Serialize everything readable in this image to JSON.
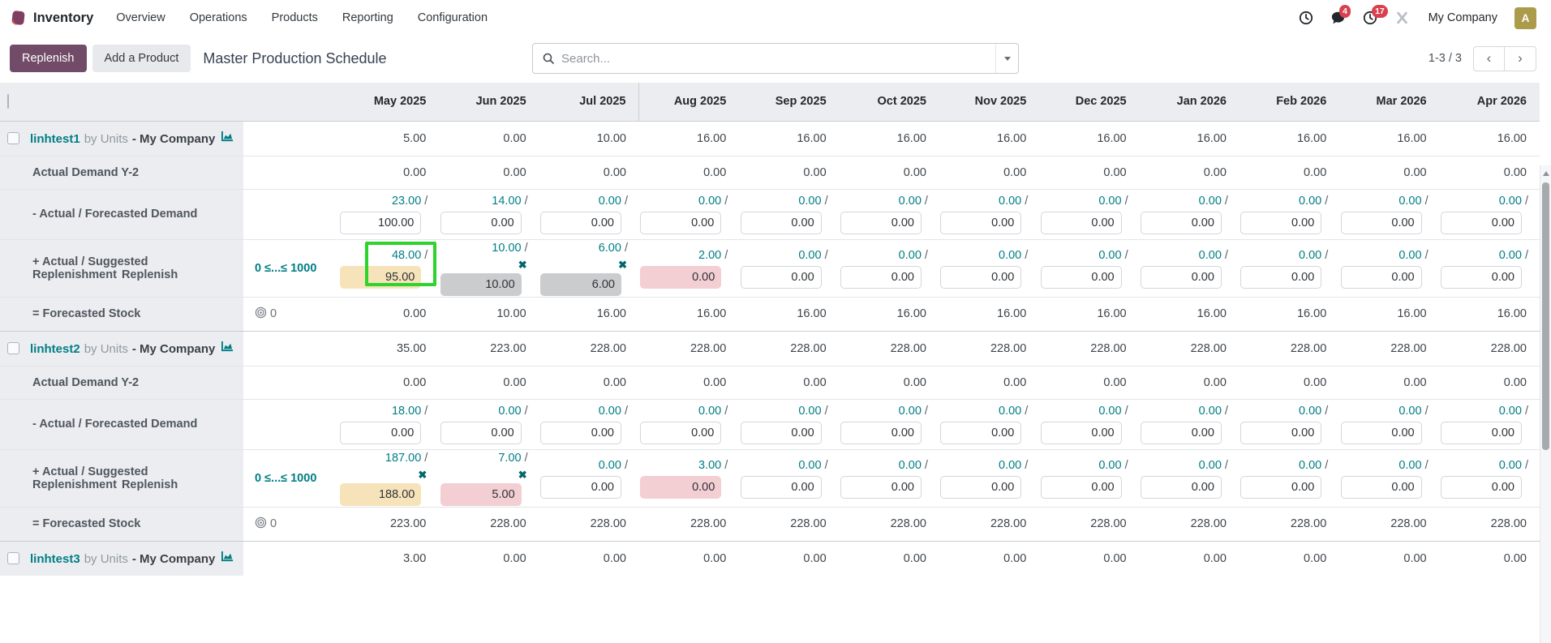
{
  "navbar": {
    "app_name": "Inventory",
    "menus": [
      "Overview",
      "Operations",
      "Products",
      "Reporting",
      "Configuration"
    ],
    "messages_badge": "4",
    "activities_badge": "17",
    "company": "My Company",
    "avatar_initial": "A"
  },
  "control_panel": {
    "replenish_label": "Replenish",
    "add_product_label": "Add a Product",
    "title": "Master Production Schedule",
    "search_placeholder": "Search...",
    "pager": "1-3 / 3",
    "prev_label": "‹",
    "next_label": "›"
  },
  "colors": {
    "accent_purple": "#714B67",
    "link_teal": "#017e84",
    "badge_red": "#d9414f",
    "input_warning": "#f6e3b9",
    "input_muted": "#cbcccd",
    "input_danger": "#f3ced3",
    "annotation_green": "#2ed32e"
  },
  "table": {
    "months": [
      "May 2025",
      "Jun 2025",
      "Jul 2025",
      "Aug 2025",
      "Sep 2025",
      "Oct 2025",
      "Nov 2025",
      "Dec 2025",
      "Jan 2026",
      "Feb 2026",
      "Mar 2026",
      "Apr 2026"
    ],
    "divider_after_month_index": 2,
    "row_labels": {
      "demand_y2": "Actual Demand Y-2",
      "forecasted_demand": "- Actual / Forecasted Demand",
      "replenishment": "+ Actual / Suggested Replenishment",
      "replenish_button": "Replenish",
      "forecasted_stock": "= Forecasted Stock",
      "range": "0 ≤...≤ 1000",
      "target": "0"
    },
    "sections": [
      {
        "product": "linhtest1",
        "by": "by Units",
        "company": "- My Company",
        "starting_inventory": [
          "5.00",
          "0.00",
          "10.00",
          "16.00",
          "16.00",
          "16.00",
          "16.00",
          "16.00",
          "16.00",
          "16.00",
          "16.00",
          "16.00"
        ],
        "demand_y2": [
          "0.00",
          "0.00",
          "0.00",
          "0.00",
          "0.00",
          "0.00",
          "0.00",
          "0.00",
          "0.00",
          "0.00",
          "0.00",
          "0.00"
        ],
        "forecasted_demand": [
          {
            "actual": "23.00",
            "value": "100.00"
          },
          {
            "actual": "14.00",
            "value": "0.00"
          },
          {
            "actual": "0.00",
            "value": "0.00"
          },
          {
            "actual": "0.00",
            "value": "0.00"
          },
          {
            "actual": "0.00",
            "value": "0.00"
          },
          {
            "actual": "0.00",
            "value": "0.00"
          },
          {
            "actual": "0.00",
            "value": "0.00"
          },
          {
            "actual": "0.00",
            "value": "0.00"
          },
          {
            "actual": "0.00",
            "value": "0.00"
          },
          {
            "actual": "0.00",
            "value": "0.00"
          },
          {
            "actual": "0.00",
            "value": "0.00"
          },
          {
            "actual": "0.00",
            "value": "0.00"
          }
        ],
        "replenishment": [
          {
            "actual": "48.00",
            "value": "95.00",
            "style": "warning",
            "highlight": true
          },
          {
            "actual": "10.00",
            "value": "10.00",
            "style": "muted",
            "x": true
          },
          {
            "actual": "6.00",
            "value": "6.00",
            "style": "muted",
            "x": true
          },
          {
            "actual": "2.00",
            "value": "0.00",
            "style": "danger"
          },
          {
            "actual": "0.00",
            "value": "0.00"
          },
          {
            "actual": "0.00",
            "value": "0.00"
          },
          {
            "actual": "0.00",
            "value": "0.00"
          },
          {
            "actual": "0.00",
            "value": "0.00"
          },
          {
            "actual": "0.00",
            "value": "0.00"
          },
          {
            "actual": "0.00",
            "value": "0.00"
          },
          {
            "actual": "0.00",
            "value": "0.00"
          },
          {
            "actual": "0.00",
            "value": "0.00"
          }
        ],
        "forecasted_stock": [
          "0.00",
          "10.00",
          "16.00",
          "16.00",
          "16.00",
          "16.00",
          "16.00",
          "16.00",
          "16.00",
          "16.00",
          "16.00",
          "16.00"
        ]
      },
      {
        "product": "linhtest2",
        "by": "by Units",
        "company": "- My Company",
        "starting_inventory": [
          "35.00",
          "223.00",
          "228.00",
          "228.00",
          "228.00",
          "228.00",
          "228.00",
          "228.00",
          "228.00",
          "228.00",
          "228.00",
          "228.00"
        ],
        "demand_y2": [
          "0.00",
          "0.00",
          "0.00",
          "0.00",
          "0.00",
          "0.00",
          "0.00",
          "0.00",
          "0.00",
          "0.00",
          "0.00",
          "0.00"
        ],
        "forecasted_demand": [
          {
            "actual": "18.00",
            "value": "0.00"
          },
          {
            "actual": "0.00",
            "value": "0.00"
          },
          {
            "actual": "0.00",
            "value": "0.00"
          },
          {
            "actual": "0.00",
            "value": "0.00"
          },
          {
            "actual": "0.00",
            "value": "0.00"
          },
          {
            "actual": "0.00",
            "value": "0.00"
          },
          {
            "actual": "0.00",
            "value": "0.00"
          },
          {
            "actual": "0.00",
            "value": "0.00"
          },
          {
            "actual": "0.00",
            "value": "0.00"
          },
          {
            "actual": "0.00",
            "value": "0.00"
          },
          {
            "actual": "0.00",
            "value": "0.00"
          },
          {
            "actual": "0.00",
            "value": "0.00"
          }
        ],
        "replenishment": [
          {
            "actual": "187.00",
            "value": "188.00",
            "style": "warning",
            "x": true
          },
          {
            "actual": "7.00",
            "value": "5.00",
            "style": "danger",
            "x": true
          },
          {
            "actual": "0.00",
            "value": "0.00"
          },
          {
            "actual": "3.00",
            "value": "0.00",
            "style": "danger"
          },
          {
            "actual": "0.00",
            "value": "0.00"
          },
          {
            "actual": "0.00",
            "value": "0.00"
          },
          {
            "actual": "0.00",
            "value": "0.00"
          },
          {
            "actual": "0.00",
            "value": "0.00"
          },
          {
            "actual": "0.00",
            "value": "0.00"
          },
          {
            "actual": "0.00",
            "value": "0.00"
          },
          {
            "actual": "0.00",
            "value": "0.00"
          },
          {
            "actual": "0.00",
            "value": "0.00"
          }
        ],
        "forecasted_stock": [
          "223.00",
          "228.00",
          "228.00",
          "228.00",
          "228.00",
          "228.00",
          "228.00",
          "228.00",
          "228.00",
          "228.00",
          "228.00",
          "228.00"
        ]
      },
      {
        "product": "linhtest3",
        "by": "by Units",
        "company": "- My Company",
        "starting_inventory": [
          "3.00",
          "0.00",
          "0.00",
          "0.00",
          "0.00",
          "0.00",
          "0.00",
          "0.00",
          "0.00",
          "0.00",
          "0.00",
          "0.00"
        ]
      }
    ]
  }
}
